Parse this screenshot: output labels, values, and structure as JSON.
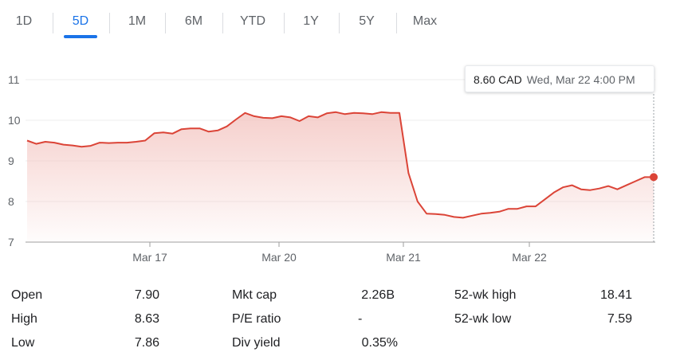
{
  "tabs": [
    {
      "label": "1D",
      "active": false
    },
    {
      "label": "5D",
      "active": true
    },
    {
      "label": "1M",
      "active": false
    },
    {
      "label": "6M",
      "active": false
    },
    {
      "label": "YTD",
      "active": false
    },
    {
      "label": "1Y",
      "active": false
    },
    {
      "label": "5Y",
      "active": false
    },
    {
      "label": "Max",
      "active": false
    }
  ],
  "tooltip": {
    "price": "8.60 CAD",
    "time": "Wed, Mar 22 4:00 PM"
  },
  "colors": {
    "accent": "#1a73e8",
    "line": "#db4437",
    "fill": "#f4c7c3",
    "grid": "#eeeeee"
  },
  "chart_data": {
    "type": "area",
    "title": "",
    "xlabel": "",
    "ylabel": "",
    "ylim": [
      7,
      11
    ],
    "yticks": [
      "7",
      "8",
      "9",
      "10",
      "11"
    ],
    "xtick_labels": [
      "Mar 17",
      "Mar 20",
      "Mar 21",
      "Mar 22"
    ],
    "series": [
      {
        "values": [
          9.5,
          9.42,
          9.47,
          9.45,
          9.4,
          9.38,
          9.35,
          9.37,
          9.45,
          9.44,
          9.45,
          9.45,
          9.47,
          9.5,
          9.68,
          9.7,
          9.67,
          9.78,
          9.8,
          9.8,
          9.72,
          9.75,
          9.85,
          10.02,
          10.18,
          10.1,
          10.06,
          10.05,
          10.1,
          10.07,
          9.98,
          10.1,
          10.07,
          10.17,
          10.2,
          10.15,
          10.18,
          10.17,
          10.15,
          10.2,
          10.18,
          10.18,
          8.7,
          8.0,
          7.7,
          7.69,
          7.67,
          7.62,
          7.6,
          7.65,
          7.7,
          7.72,
          7.75,
          7.82,
          7.82,
          7.88,
          7.88,
          8.05,
          8.22,
          8.35,
          8.4,
          8.3,
          8.28,
          8.32,
          8.38,
          8.3,
          8.4,
          8.5,
          8.6,
          8.6
        ]
      }
    ],
    "current_point": 8.6
  },
  "stats": {
    "open_label": "Open",
    "open_value": "7.90",
    "high_label": "High",
    "high_value": "8.63",
    "low_label": "Low",
    "low_value": "7.86",
    "mktcap_label": "Mkt cap",
    "mktcap_value": "2.26B",
    "pe_label": "P/E ratio",
    "pe_value": "-",
    "div_label": "Div yield",
    "div_value": "0.35%",
    "wkhigh_label": "52-wk high",
    "wkhigh_value": "18.41",
    "wklow_label": "52-wk low",
    "wklow_value": "7.59"
  }
}
